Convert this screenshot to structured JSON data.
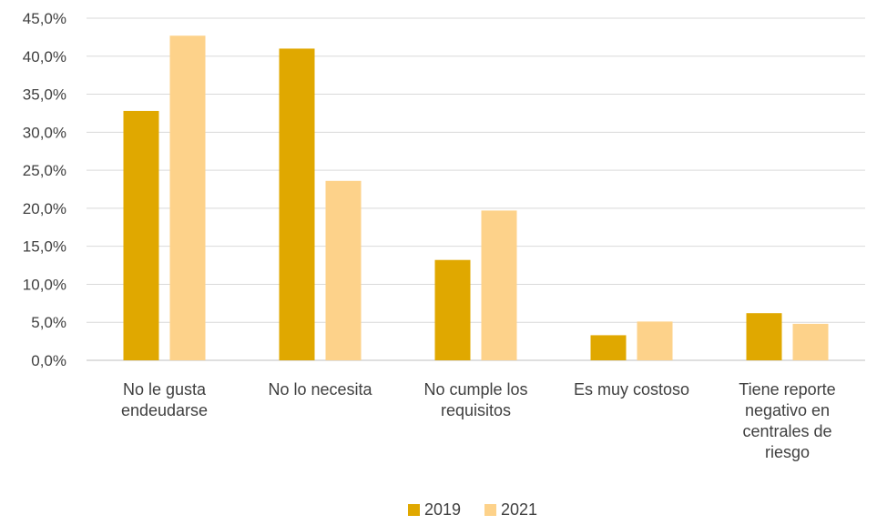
{
  "chart_data": {
    "type": "bar",
    "categories": [
      [
        "No le gusta",
        "endeudarse"
      ],
      [
        "No lo necesita"
      ],
      [
        "No cumple los",
        "requisitos"
      ],
      [
        "Es muy costoso"
      ],
      [
        "Tiene reporte",
        "negativo en",
        "centrales de",
        "riesgo"
      ]
    ],
    "series": [
      {
        "name": "2019",
        "color": "#E0A800",
        "values": [
          32.8,
          41.0,
          13.2,
          3.3,
          6.2
        ]
      },
      {
        "name": "2021",
        "color": "#FDD28A",
        "values": [
          42.7,
          23.6,
          19.7,
          5.1,
          4.8
        ]
      }
    ],
    "y_ticks": [
      "0,0%",
      "5,0%",
      "10,0%",
      "15,0%",
      "20,0%",
      "25,0%",
      "30,0%",
      "35,0%",
      "40,0%",
      "45,0%"
    ],
    "ylim": [
      0,
      45
    ],
    "grid": true,
    "gridline_color": "#D9D9D9",
    "legend_position": "bottom"
  }
}
